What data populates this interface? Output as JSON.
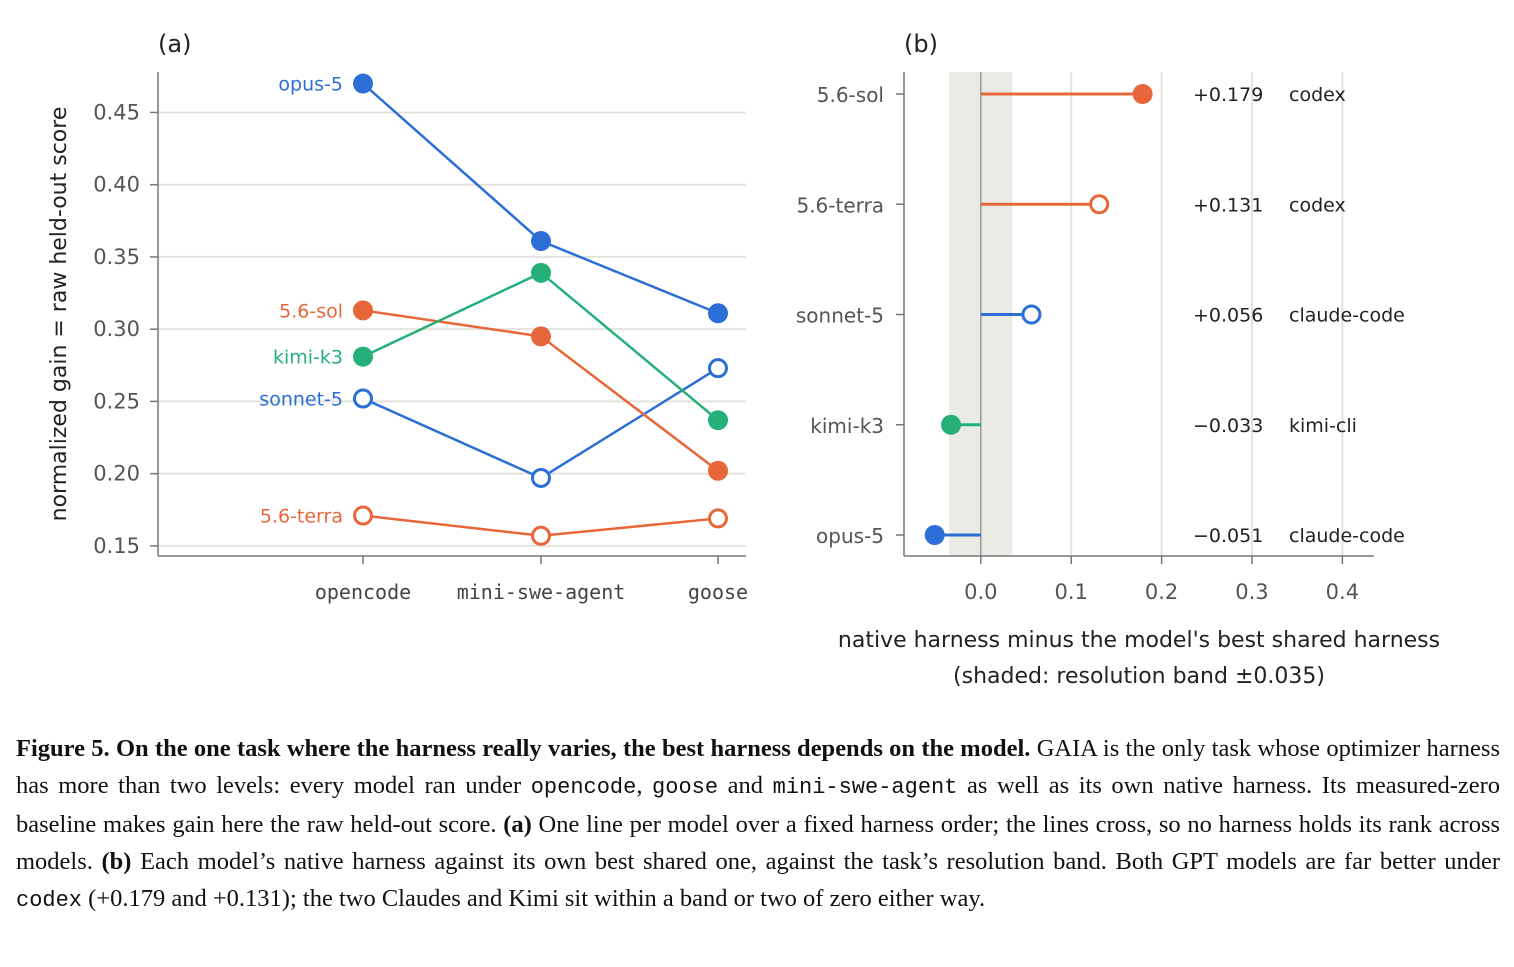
{
  "colors": {
    "blue": "#2b6fd6",
    "orange": "#e8673a",
    "green": "#25b07a",
    "grid": "#e3e3dc",
    "axis": "#777777",
    "band": "#ebebe6"
  },
  "chart_data": [
    {
      "panel": "(a)",
      "type": "line",
      "ylabel": "normalized gain = raw held-out score",
      "categories": [
        "opencode",
        "mini-swe-agent",
        "goose"
      ],
      "ylim": [
        0.143,
        0.478
      ],
      "yticks": [
        "0.15",
        "0.20",
        "0.25",
        "0.30",
        "0.35",
        "0.40",
        "0.45"
      ],
      "grid": true,
      "series": [
        {
          "name": "opus-5",
          "color": "blue",
          "marker": "filled",
          "values": [
            0.47,
            0.361,
            0.311
          ]
        },
        {
          "name": "sonnet-5",
          "color": "blue",
          "marker": "open",
          "values": [
            0.252,
            0.197,
            0.273
          ]
        },
        {
          "name": "5.6-sol",
          "color": "orange",
          "marker": "filled",
          "values": [
            0.313,
            0.295,
            0.202
          ]
        },
        {
          "name": "5.6-terra",
          "color": "orange",
          "marker": "open",
          "values": [
            0.171,
            0.157,
            0.169
          ]
        },
        {
          "name": "kimi-k3",
          "color": "green",
          "marker": "filled",
          "values": [
            0.281,
            0.339,
            0.237
          ]
        }
      ]
    },
    {
      "panel": "(b)",
      "type": "lollipop",
      "xlabel_line1": "native harness minus the model's best shared harness",
      "xlabel_line2": "(shaded: resolution band ±0.035)",
      "xlim": [
        -0.085,
        0.435
      ],
      "xticks": [
        "0.0",
        "0.1",
        "0.2",
        "0.3",
        "0.4"
      ],
      "band": [
        -0.035,
        0.035
      ],
      "rows": [
        {
          "model": "5.6-sol",
          "value": 0.179,
          "value_label": "+0.179",
          "harness": "codex",
          "color": "orange",
          "marker": "filled"
        },
        {
          "model": "5.6-terra",
          "value": 0.131,
          "value_label": "+0.131",
          "harness": "codex",
          "color": "orange",
          "marker": "open"
        },
        {
          "model": "sonnet-5",
          "value": 0.056,
          "value_label": "+0.056",
          "harness": "claude-code",
          "color": "blue",
          "marker": "open"
        },
        {
          "model": "kimi-k3",
          "value": -0.033,
          "value_label": "−0.033",
          "harness": "kimi-cli",
          "color": "green",
          "marker": "filled"
        },
        {
          "model": "opus-5",
          "value": -0.051,
          "value_label": "−0.051",
          "harness": "claude-code",
          "color": "blue",
          "marker": "filled"
        }
      ]
    }
  ],
  "caption": {
    "figure_label": "Figure 5.",
    "bold_title": "On the one task where the harness really varies, the best harness depends on the model.",
    "s1": "GAIA is the only task whose optimizer harness has more than two levels: every model ran under",
    "code1": "opencode",
    "s2": ",",
    "code2": "goose",
    "s3": "and",
    "code3": "mini-swe-agent",
    "s4": "as well as its own native harness. Its measured-zero baseline makes gain here the raw held-out score.",
    "a_label": "(a)",
    "s5": "One line per model over a fixed harness order; the lines cross, so no harness holds its rank across models.",
    "b_label": "(b)",
    "s6": "Each model’s native harness against its own best shared one, against the task’s resolution band. Both GPT models are far better under",
    "code4": "codex",
    "s7": "(+0.179 and +0.131); the two Claudes and Kimi sit within a band or two of zero either way."
  }
}
